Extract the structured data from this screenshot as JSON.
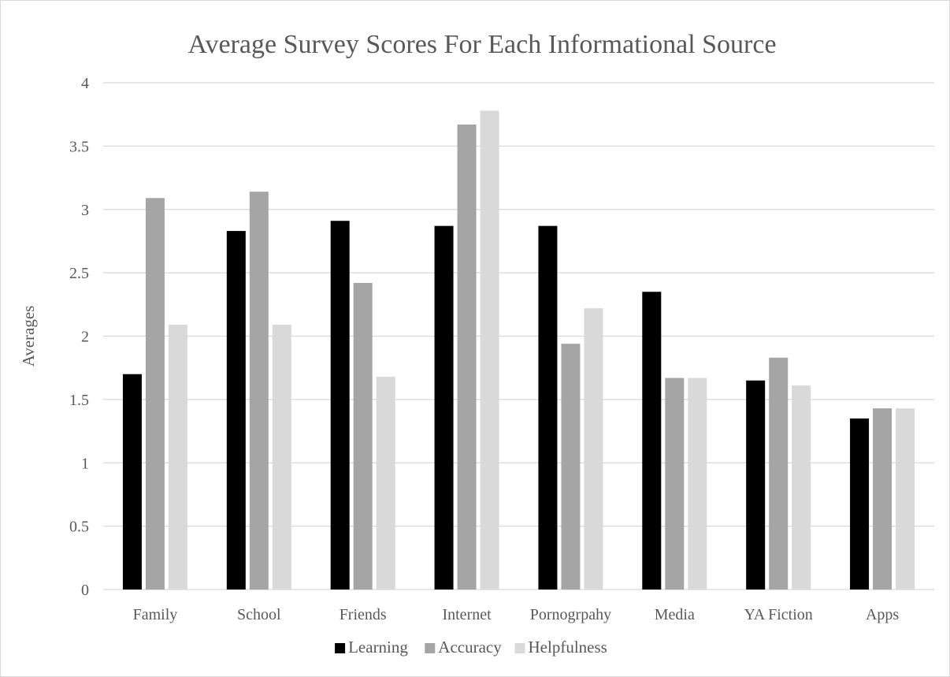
{
  "chart_data": {
    "type": "bar",
    "title": "Average Survey Scores For Each Informational Source",
    "xlabel": "",
    "ylabel": "Averages",
    "ylim": [
      0,
      4
    ],
    "yticks": [
      "0",
      "0.5",
      "1",
      "1.5",
      "2",
      "2.5",
      "3",
      "3.5",
      "4"
    ],
    "grid": true,
    "legend_position": "bottom",
    "categories": [
      "Family",
      "School",
      "Friends",
      "Internet",
      "Pornogrpahy",
      "Media",
      "YA Fiction",
      "Apps"
    ],
    "series": [
      {
        "name": "Learning",
        "color": "#000000",
        "values": [
          1.7,
          2.83,
          2.91,
          2.87,
          2.87,
          2.35,
          1.65,
          1.35
        ]
      },
      {
        "name": "Accuracy",
        "color": "#a5a5a5",
        "values": [
          3.09,
          3.14,
          2.42,
          3.67,
          1.94,
          1.67,
          1.83,
          1.43
        ]
      },
      {
        "name": "Helpfulness",
        "color": "#d9d9d9",
        "values": [
          2.09,
          2.09,
          1.68,
          3.78,
          2.22,
          1.67,
          1.61,
          1.43
        ]
      }
    ]
  }
}
